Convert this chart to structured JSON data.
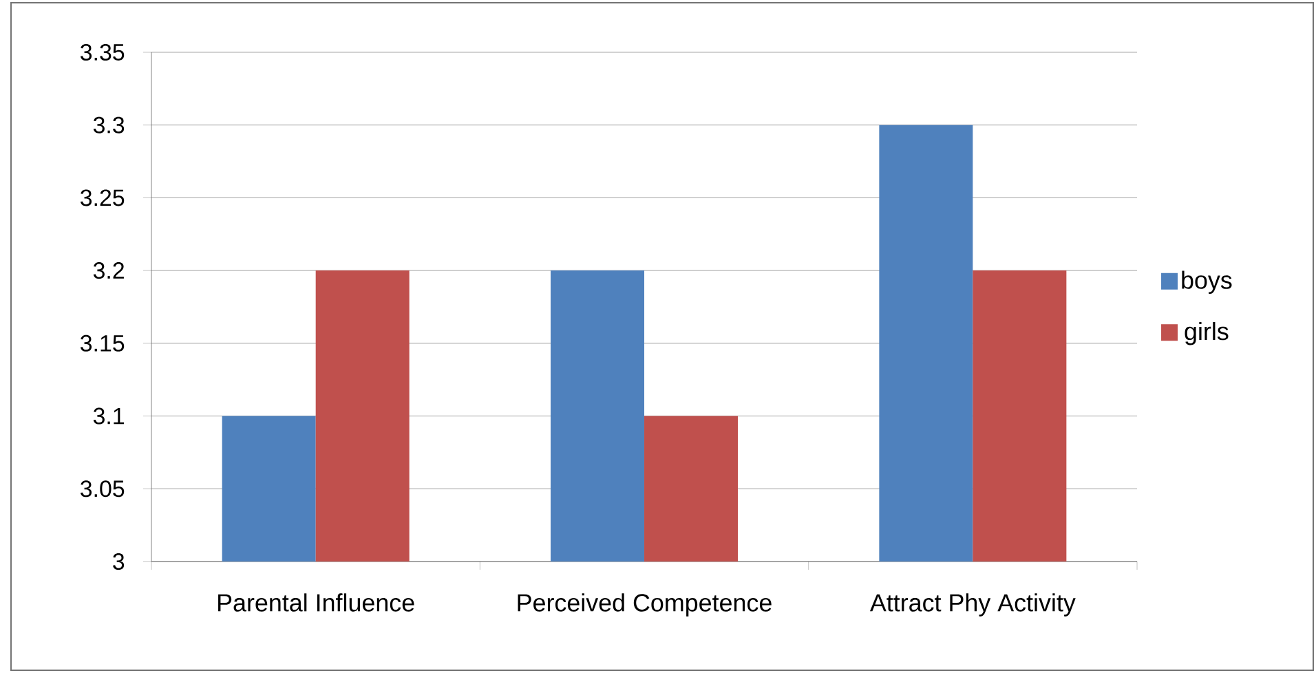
{
  "chart_data": {
    "type": "bar",
    "categories": [
      "Parental Influence",
      "Perceived Competence",
      "Attract Phy Activity"
    ],
    "series": [
      {
        "name": "boys",
        "color": "#4f81bd",
        "values": [
          3.1,
          3.2,
          3.3
        ]
      },
      {
        "name": "girls",
        "color": "#c0504d",
        "values": [
          3.2,
          3.1,
          3.2
        ]
      }
    ],
    "ylim": [
      3,
      3.35
    ],
    "yticks": [
      3,
      3.05,
      3.1,
      3.15,
      3.2,
      3.25,
      3.3,
      3.35
    ],
    "grid": "y",
    "legend": "right"
  }
}
